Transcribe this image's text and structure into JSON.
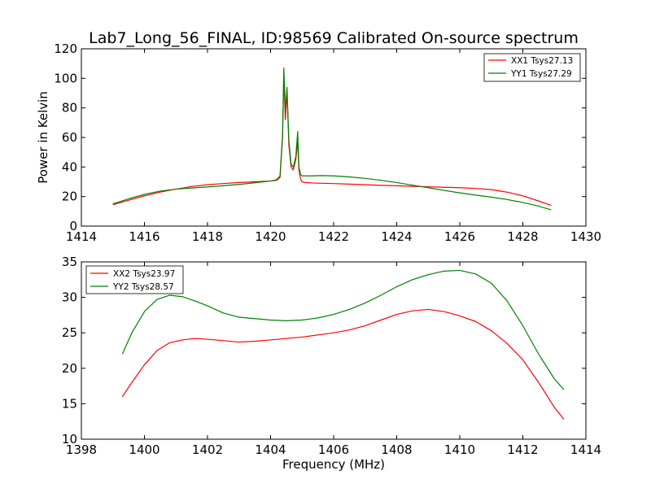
{
  "title": "Lab7_Long_56_FINAL, ID:98569 Calibrated On-source spectrum",
  "chart_data": [
    {
      "type": "line",
      "ylabel": "Power in Kelvin",
      "xlabel": "",
      "xlim": [
        1414,
        1430
      ],
      "ylim": [
        0,
        120
      ],
      "xticks": [
        "1414",
        "1416",
        "1418",
        "1420",
        "1422",
        "1424",
        "1426",
        "1428",
        "1430"
      ],
      "yticks": [
        "0",
        "20",
        "40",
        "60",
        "80",
        "100",
        "120"
      ],
      "legend_position": "top-right",
      "grid": false,
      "series": [
        {
          "name": "XX1 Tsys27.13",
          "color": "#ff0000",
          "x": [
            1415.0,
            1415.5,
            1416.0,
            1416.5,
            1417.0,
            1417.5,
            1418.0,
            1418.5,
            1419.0,
            1419.5,
            1420.0,
            1420.2,
            1420.3,
            1420.38,
            1420.42,
            1420.47,
            1420.52,
            1420.58,
            1420.65,
            1420.72,
            1420.8,
            1420.86,
            1420.9,
            1420.95,
            1421.0,
            1421.1,
            1421.3,
            1421.6,
            1422.0,
            1422.5,
            1423.0,
            1423.5,
            1424.0,
            1424.5,
            1425.0,
            1425.5,
            1426.0,
            1426.5,
            1427.0,
            1427.5,
            1428.0,
            1428.5,
            1428.9
          ],
          "y": [
            14.5,
            17.5,
            20.5,
            23.0,
            25.0,
            26.8,
            28.0,
            28.8,
            29.5,
            30.0,
            30.5,
            31.0,
            33.0,
            60.0,
            101.0,
            72.0,
            92.0,
            55.0,
            40.0,
            38.0,
            45.0,
            57.0,
            38.0,
            32.0,
            30.0,
            29.5,
            29.2,
            29.0,
            28.8,
            28.4,
            28.0,
            27.6,
            27.3,
            26.9,
            26.6,
            26.3,
            26.0,
            25.5,
            24.7,
            23.0,
            20.5,
            17.0,
            14.0
          ]
        },
        {
          "name": "YY1 Tsys27.29",
          "color": "#008000",
          "x": [
            1415.0,
            1415.5,
            1416.0,
            1416.5,
            1417.0,
            1417.5,
            1418.0,
            1418.5,
            1419.0,
            1419.5,
            1420.0,
            1420.2,
            1420.3,
            1420.38,
            1420.42,
            1420.47,
            1420.52,
            1420.58,
            1420.65,
            1420.72,
            1420.8,
            1420.86,
            1420.9,
            1420.95,
            1421.0,
            1421.1,
            1421.3,
            1421.6,
            1422.0,
            1422.5,
            1423.0,
            1423.5,
            1424.0,
            1424.5,
            1425.0,
            1425.5,
            1426.0,
            1426.5,
            1427.0,
            1427.5,
            1428.0,
            1428.5,
            1428.9
          ],
          "y": [
            15.0,
            18.5,
            21.5,
            23.7,
            25.0,
            25.8,
            26.5,
            27.3,
            28.2,
            29.3,
            30.5,
            31.5,
            34.0,
            62.0,
            107.0,
            78.0,
            94.0,
            58.0,
            42.0,
            40.0,
            47.0,
            64.0,
            40.0,
            35.0,
            34.0,
            34.0,
            34.0,
            34.2,
            34.0,
            33.3,
            32.3,
            31.0,
            29.5,
            27.7,
            26.0,
            24.2,
            22.5,
            21.0,
            19.6,
            18.0,
            16.0,
            13.5,
            11.0
          ]
        }
      ]
    },
    {
      "type": "line",
      "ylabel": "",
      "xlabel": "Frequency (MHz)",
      "xlim": [
        1398,
        1414
      ],
      "ylim": [
        10,
        35
      ],
      "xticks": [
        "1398",
        "1400",
        "1402",
        "1404",
        "1406",
        "1408",
        "1410",
        "1412",
        "1414"
      ],
      "yticks": [
        "10",
        "15",
        "20",
        "25",
        "30",
        "35"
      ],
      "legend_position": "top-left",
      "grid": false,
      "series": [
        {
          "name": "XX2 Tsys23.97",
          "color": "#ff0000",
          "x": [
            1399.3,
            1399.6,
            1400.0,
            1400.4,
            1400.8,
            1401.2,
            1401.6,
            1402.0,
            1402.5,
            1403.0,
            1403.5,
            1404.0,
            1404.5,
            1405.0,
            1405.5,
            1406.0,
            1406.5,
            1407.0,
            1407.5,
            1408.0,
            1408.5,
            1409.0,
            1409.5,
            1410.0,
            1410.5,
            1411.0,
            1411.5,
            1412.0,
            1412.5,
            1413.0,
            1413.3
          ],
          "y": [
            16.0,
            18.0,
            20.5,
            22.5,
            23.6,
            24.0,
            24.2,
            24.1,
            23.9,
            23.7,
            23.8,
            24.0,
            24.2,
            24.4,
            24.7,
            25.0,
            25.4,
            26.0,
            26.8,
            27.6,
            28.1,
            28.3,
            28.0,
            27.4,
            26.6,
            25.3,
            23.5,
            21.2,
            18.0,
            14.5,
            12.8
          ]
        },
        {
          "name": "YY2 Tsys28.57",
          "color": "#008000",
          "x": [
            1399.3,
            1399.6,
            1400.0,
            1400.4,
            1400.8,
            1401.2,
            1401.6,
            1402.0,
            1402.5,
            1403.0,
            1403.5,
            1404.0,
            1404.5,
            1405.0,
            1405.5,
            1406.0,
            1406.5,
            1407.0,
            1407.5,
            1408.0,
            1408.5,
            1409.0,
            1409.5,
            1410.0,
            1410.5,
            1411.0,
            1411.5,
            1412.0,
            1412.5,
            1413.0,
            1413.3
          ],
          "y": [
            22.0,
            25.0,
            28.0,
            29.7,
            30.3,
            30.1,
            29.5,
            28.8,
            27.8,
            27.2,
            27.0,
            26.8,
            26.7,
            26.8,
            27.1,
            27.6,
            28.3,
            29.2,
            30.3,
            31.5,
            32.5,
            33.2,
            33.7,
            33.8,
            33.3,
            32.0,
            29.5,
            26.0,
            22.0,
            18.5,
            17.0
          ]
        }
      ]
    }
  ]
}
